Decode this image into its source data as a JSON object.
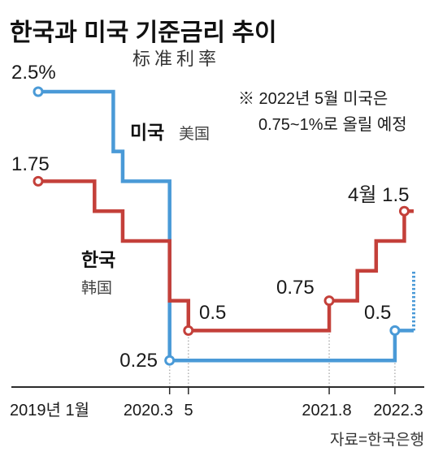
{
  "chart_data": {
    "type": "line",
    "step": true,
    "title": "한국과 미국 기준금리 추이",
    "subtitle": "标准利率",
    "xlim": [
      "2019-01",
      "2022-05"
    ],
    "ylim": [
      0,
      2.5
    ],
    "grid": false,
    "x_ticks": [
      {
        "x": "2019-01",
        "label": "2019년 1월"
      },
      {
        "x": "2020-03",
        "label": "2020.3"
      },
      {
        "x": "2020-05",
        "label": "5"
      },
      {
        "x": "2021-08",
        "label": "2021.8"
      },
      {
        "x": "2022-03",
        "label": "2022.3"
      }
    ],
    "series": [
      {
        "name": "미국",
        "name_alt": "美国",
        "color": "#4a9ad7",
        "points": [
          {
            "x": "2019-01",
            "y": 2.5,
            "marker": true
          },
          {
            "x": "2019-09",
            "y": 2.0
          },
          {
            "x": "2019-10",
            "y": 1.75
          },
          {
            "x": "2020-03",
            "y": 0.25,
            "marker": true
          },
          {
            "x": "2022-03",
            "y": 0.5,
            "marker": true
          }
        ],
        "planned": {
          "x": "2022-05",
          "from": 0.5,
          "to": 1.0
        },
        "data_labels": [
          "2.5%",
          "0.25",
          "0.5"
        ]
      },
      {
        "name": "한국",
        "name_alt": "韩国",
        "color": "#c4403a",
        "points": [
          {
            "x": "2019-01",
            "y": 1.75,
            "marker": true
          },
          {
            "x": "2019-07",
            "y": 1.5
          },
          {
            "x": "2019-10",
            "y": 1.25
          },
          {
            "x": "2020-03",
            "y": 0.75
          },
          {
            "x": "2020-05",
            "y": 0.5,
            "marker": true
          },
          {
            "x": "2021-08",
            "y": 0.75,
            "marker": true
          },
          {
            "x": "2021-11",
            "y": 1.0
          },
          {
            "x": "2022-01",
            "y": 1.25
          },
          {
            "x": "2022-04",
            "y": 1.5,
            "marker": true
          }
        ],
        "data_labels": [
          "1.75",
          "0.5",
          "0.75",
          "4월 1.5"
        ]
      }
    ],
    "annotation": [
      "※ 2022년 5월 미국은",
      "0.75~1%로 올릴 예정"
    ],
    "source": "자료=한국은행"
  }
}
